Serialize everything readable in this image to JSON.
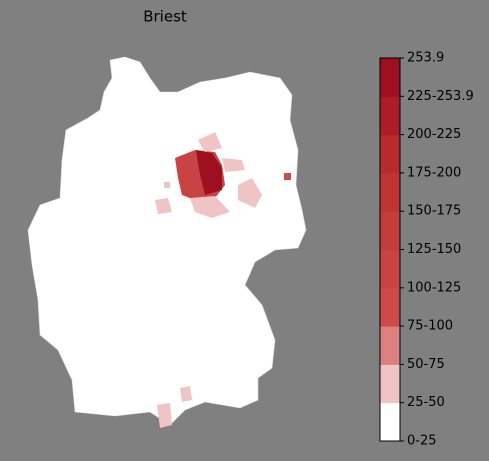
{
  "title": "Briest",
  "colorbar": {
    "labels": [
      "0-25",
      "25-50",
      "50-75",
      "75-100",
      "100-125",
      "125-150",
      "150-175",
      "175-200",
      "200-225",
      "225-253.9",
      "253.9"
    ],
    "colors": [
      "#ffffff",
      "#f0c4c4",
      "#dc8080",
      "#cc4a4a",
      "#c84444",
      "#c43c3c",
      "#bf3434",
      "#b72a2e",
      "#ac1e27",
      "#9e0f1f"
    ]
  }
}
